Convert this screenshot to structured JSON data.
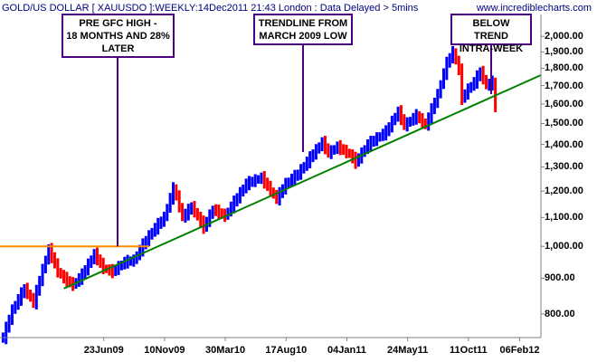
{
  "header": {
    "title": "GOLD/US DOLLAR [ XAUUSDO ]:WEEKLY:14Dec2011 21:43 London : Data Delayed > 5mins",
    "website": "www.incrediblecharts.com"
  },
  "annotations": [
    {
      "id": "pre-gfc",
      "lines": [
        "PRE GFC HIGH -",
        "18 MONTHS AND 28%",
        "LATER"
      ]
    },
    {
      "id": "trendline",
      "lines": [
        "TRENDLINE FROM",
        "MARCH 2009 LOW"
      ]
    },
    {
      "id": "below-trend",
      "lines": [
        "BELOW TREND",
        "INTRA-WEEK"
      ]
    }
  ],
  "colors": {
    "up_bar": "#0000ff",
    "down_bar": "#ff0000",
    "trendline": "#008000",
    "pre_gfc_line": "#ff8c00",
    "callout_border": "#4b0082",
    "axis": "#808080",
    "header_text": "#000080"
  },
  "chart_data": {
    "type": "ohlc",
    "title": "GOLD/US DOLLAR [ XAUUSDO ]:WEEKLY",
    "y_scale": "log",
    "ylim": [
      740,
      2150
    ],
    "y_ticks": [
      800,
      900,
      1000,
      1100,
      1200,
      1300,
      1400,
      1500,
      1600,
      1700,
      1800,
      1900,
      2000
    ],
    "y_tick_labels": [
      "800.00",
      "900.00",
      "1,000.00",
      "1,100.00",
      "1,200.00",
      "1,300.00",
      "1,400.00",
      "1,500.00",
      "1,600.00",
      "1,700.00",
      "1,800.00",
      "1,900.00",
      "2,000.00"
    ],
    "xlim": [
      "2008-10-27",
      "2012-03-26"
    ],
    "x_ticks": [
      "2009-06-23",
      "2009-11-10",
      "2010-03-30",
      "2010-08-17",
      "2011-01-04",
      "2011-05-24",
      "2011-10-11",
      "2012-02-06"
    ],
    "x_tick_labels": [
      "23Jun09",
      "10Nov09",
      "30Mar10",
      "17Aug10",
      "04Jan11",
      "24May11",
      "11Oct11",
      "06Feb12"
    ],
    "series_colors": {
      "up": "blue",
      "down": "red"
    },
    "price_path": [
      {
        "date": "2008-11-03",
        "close": 740
      },
      {
        "date": "2008-11-24",
        "close": 810
      },
      {
        "date": "2008-12-22",
        "close": 870
      },
      {
        "date": "2009-01-12",
        "close": 830
      },
      {
        "date": "2009-02-16",
        "close": 990
      },
      {
        "date": "2009-03-09",
        "close": 920
      },
      {
        "date": "2009-03-23",
        "close": 900
      },
      {
        "date": "2009-04-13",
        "close": 880
      },
      {
        "date": "2009-05-04",
        "close": 910
      },
      {
        "date": "2009-06-01",
        "close": 975
      },
      {
        "date": "2009-06-22",
        "close": 930
      },
      {
        "date": "2009-07-13",
        "close": 920
      },
      {
        "date": "2009-08-10",
        "close": 950
      },
      {
        "date": "2009-08-31",
        "close": 955
      },
      {
        "date": "2009-09-21",
        "close": 1005
      },
      {
        "date": "2009-10-12",
        "close": 1050
      },
      {
        "date": "2009-11-09",
        "close": 1100
      },
      {
        "date": "2009-12-01",
        "close": 1215
      },
      {
        "date": "2009-12-21",
        "close": 1100
      },
      {
        "date": "2010-01-11",
        "close": 1140
      },
      {
        "date": "2010-02-08",
        "close": 1065
      },
      {
        "date": "2010-03-01",
        "close": 1130
      },
      {
        "date": "2010-03-29",
        "close": 1105
      },
      {
        "date": "2010-04-26",
        "close": 1175
      },
      {
        "date": "2010-05-17",
        "close": 1230
      },
      {
        "date": "2010-06-21",
        "close": 1255
      },
      {
        "date": "2010-07-12",
        "close": 1200
      },
      {
        "date": "2010-07-26",
        "close": 1170
      },
      {
        "date": "2010-08-16",
        "close": 1230
      },
      {
        "date": "2010-09-13",
        "close": 1270
      },
      {
        "date": "2010-10-11",
        "close": 1340
      },
      {
        "date": "2010-11-08",
        "close": 1410
      },
      {
        "date": "2010-11-22",
        "close": 1360
      },
      {
        "date": "2010-12-13",
        "close": 1390
      },
      {
        "date": "2011-01-10",
        "close": 1355
      },
      {
        "date": "2011-01-24",
        "close": 1320
      },
      {
        "date": "2011-02-21",
        "close": 1400
      },
      {
        "date": "2011-04-04",
        "close": 1460
      },
      {
        "date": "2011-05-02",
        "close": 1560
      },
      {
        "date": "2011-05-16",
        "close": 1490
      },
      {
        "date": "2011-06-13",
        "close": 1540
      },
      {
        "date": "2011-07-04",
        "close": 1490
      },
      {
        "date": "2011-08-01",
        "close": 1650
      },
      {
        "date": "2011-08-22",
        "close": 1830
      },
      {
        "date": "2011-09-05",
        "close": 1900
      },
      {
        "date": "2011-09-19",
        "close": 1790
      },
      {
        "date": "2011-09-26",
        "close": 1630
      },
      {
        "date": "2011-10-10",
        "close": 1680
      },
      {
        "date": "2011-10-24",
        "close": 1720
      },
      {
        "date": "2011-11-07",
        "close": 1780
      },
      {
        "date": "2011-11-21",
        "close": 1700
      },
      {
        "date": "2011-12-05",
        "close": 1720
      },
      {
        "date": "2011-12-12",
        "close": 1580
      }
    ],
    "trendline": {
      "start": {
        "date": "2009-03-23",
        "value": 870
      },
      "end": {
        "date": "2012-03-26",
        "value": 1760
      },
      "label": "TRENDLINE FROM MARCH 2009 LOW"
    },
    "reference_line": {
      "value": 1000,
      "from": "2008-10-27",
      "to": "2009-10-06",
      "label": "PRE GFC HIGH"
    },
    "grid": false,
    "legend": "none"
  }
}
